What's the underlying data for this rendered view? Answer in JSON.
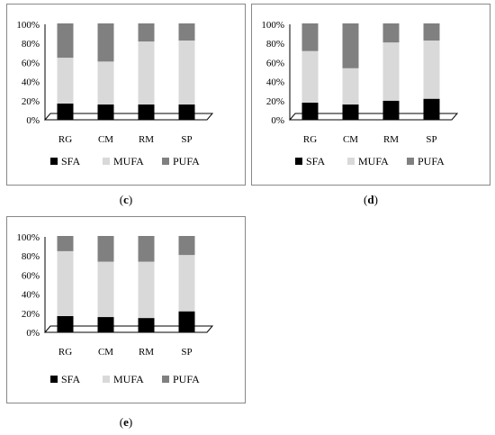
{
  "chart_data": [
    {
      "type": "bar",
      "stacked": true,
      "percent": true,
      "label": "c",
      "categories": [
        "RG",
        "CM",
        "RM",
        "SP"
      ],
      "yticks": [
        "0%",
        "20%",
        "40%",
        "60%",
        "80%",
        "100%"
      ],
      "ylim": [
        0,
        100
      ],
      "legend_position": "bottom",
      "series": [
        {
          "name": "SFA",
          "color": "#000000",
          "values": [
            17,
            16,
            16,
            16
          ]
        },
        {
          "name": "MUFA",
          "color": "#d9d9d9",
          "values": [
            48,
            45,
            66,
            67
          ]
        },
        {
          "name": "PUFA",
          "color": "#808080",
          "values": [
            35,
            39,
            18,
            17
          ]
        }
      ]
    },
    {
      "type": "bar",
      "stacked": true,
      "percent": true,
      "label": "d",
      "categories": [
        "RG",
        "CM",
        "RM",
        "SP"
      ],
      "yticks": [
        "0%",
        "20%",
        "40%",
        "60%",
        "80%",
        "100%"
      ],
      "ylim": [
        0,
        100
      ],
      "legend_position": "bottom",
      "series": [
        {
          "name": "SFA",
          "color": "#000000",
          "values": [
            18,
            16,
            20,
            22
          ]
        },
        {
          "name": "MUFA",
          "color": "#d9d9d9",
          "values": [
            54,
            38,
            61,
            61
          ]
        },
        {
          "name": "PUFA",
          "color": "#808080",
          "values": [
            28,
            46,
            19,
            17
          ]
        }
      ]
    },
    {
      "type": "bar",
      "stacked": true,
      "percent": true,
      "label": "e",
      "categories": [
        "RG",
        "CM",
        "RM",
        "SP"
      ],
      "yticks": [
        "0%",
        "20%",
        "40%",
        "60%",
        "80%",
        "100%"
      ],
      "ylim": [
        0,
        100
      ],
      "legend_position": "bottom",
      "series": [
        {
          "name": "SFA",
          "color": "#000000",
          "values": [
            17,
            16,
            15,
            22
          ]
        },
        {
          "name": "MUFA",
          "color": "#d9d9d9",
          "values": [
            68,
            58,
            59,
            59
          ]
        },
        {
          "name": "PUFA",
          "color": "#808080",
          "values": [
            15,
            26,
            26,
            19
          ]
        }
      ]
    }
  ]
}
